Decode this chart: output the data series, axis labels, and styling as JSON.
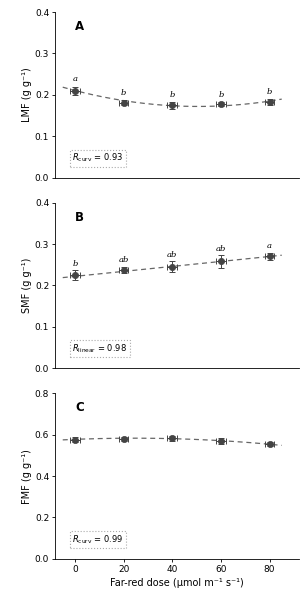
{
  "x": [
    0,
    20,
    40,
    60,
    80
  ],
  "panels": [
    {
      "label": "A",
      "ylabel": "LMF (g g⁻¹)",
      "ylim": [
        0.0,
        0.4
      ],
      "yticks": [
        0.0,
        0.1,
        0.2,
        0.3,
        0.4
      ],
      "y": [
        0.21,
        0.181,
        0.175,
        0.178,
        0.183
      ],
      "yerr": [
        0.01,
        0.006,
        0.009,
        0.006,
        0.007
      ],
      "xerr": [
        2.0,
        2.0,
        2.0,
        2.0,
        2.0
      ],
      "sig_labels": [
        "a",
        "b",
        "b",
        "b",
        "b"
      ],
      "sig_offsets": [
        0.018,
        0.014,
        0.016,
        0.013,
        0.014
      ],
      "r_text": "$R_{\\mathrm{curv}}$ = 0.93",
      "trend_y": [
        0.213,
        0.181,
        0.175,
        0.177,
        0.183
      ]
    },
    {
      "label": "B",
      "ylabel": "SMF (g g⁻¹)",
      "ylim": [
        0.0,
        0.4
      ],
      "yticks": [
        0.0,
        0.1,
        0.2,
        0.3,
        0.4
      ],
      "y": [
        0.225,
        0.237,
        0.245,
        0.258,
        0.27
      ],
      "yerr": [
        0.012,
        0.008,
        0.013,
        0.015,
        0.009
      ],
      "xerr": [
        2.0,
        2.0,
        2.0,
        2.0,
        2.0
      ],
      "sig_labels": [
        "b",
        "ab",
        "ab",
        "ab",
        "a"
      ],
      "sig_offsets": [
        0.018,
        0.015,
        0.018,
        0.02,
        0.016
      ],
      "r_text": "$R_{\\mathrm{linear}}$ = 0.98",
      "trend_y": [
        0.222,
        0.234,
        0.246,
        0.258,
        0.27
      ]
    },
    {
      "label": "C",
      "ylabel": "FMF (g g⁻¹)",
      "ylim": [
        0.0,
        0.8
      ],
      "yticks": [
        0.0,
        0.2,
        0.4,
        0.6,
        0.8
      ],
      "y": [
        0.575,
        0.58,
        0.582,
        0.57,
        0.553
      ],
      "yerr": [
        0.012,
        0.01,
        0.013,
        0.013,
        0.01
      ],
      "xerr": [
        2.0,
        2.0,
        2.0,
        2.0,
        2.0
      ],
      "sig_labels": [
        "",
        "",
        "",
        "",
        ""
      ],
      "sig_offsets": [
        0.0,
        0.0,
        0.0,
        0.0,
        0.0
      ],
      "r_text": "$R_{\\mathrm{curv}}$ = 0.99",
      "trend_y": [
        0.578,
        0.581,
        0.581,
        0.572,
        0.553
      ]
    }
  ],
  "xlabel": "Far-red dose (μmol m⁻¹ s⁻¹)",
  "xlim": [
    -8,
    92
  ],
  "xticks": [
    0,
    20,
    40,
    60,
    80
  ],
  "marker_color": "#444444",
  "marker_size": 4.5,
  "line_color": "#666666",
  "capsize": 2.5,
  "elinewidth": 0.7,
  "background_color": "#ffffff",
  "sig_fontsize": 6.0,
  "label_fontsize": 7.0,
  "tick_fontsize": 6.5,
  "r_fontsize": 6.0,
  "panel_label_fontsize": 8.5
}
